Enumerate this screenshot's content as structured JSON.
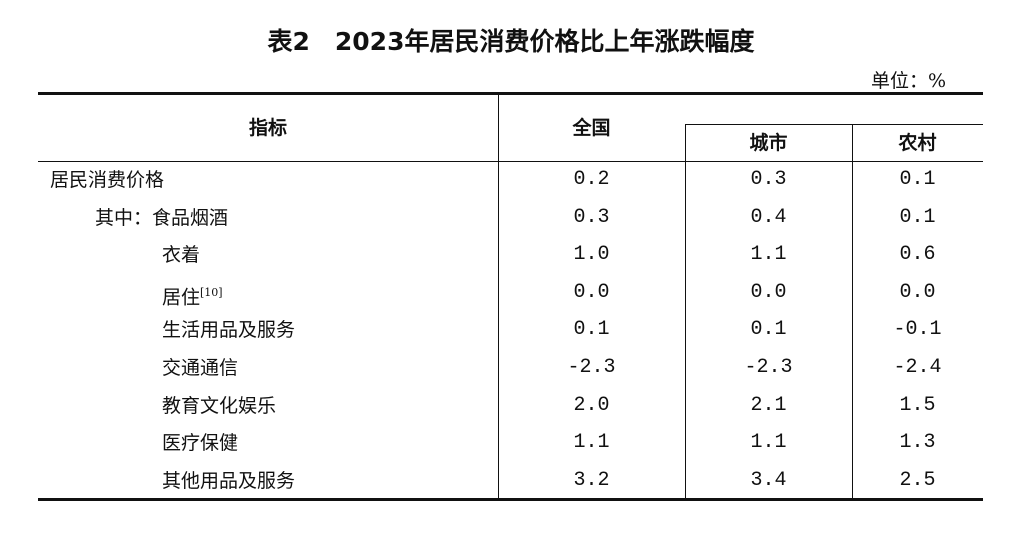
{
  "title": "表2　2023年居民消费价格比上年涨跌幅度",
  "unit": "单位：%",
  "headers": {
    "indicator": "指标",
    "national": "全国",
    "urban": "城市",
    "rural": "农村"
  },
  "rows": [
    {
      "label": "居民消费价格",
      "prefix": "",
      "sup": "",
      "national": "0.2",
      "urban": "0.3",
      "rural": "0.1"
    },
    {
      "label": "食品烟酒",
      "prefix": "其中：",
      "sup": "",
      "national": "0.3",
      "urban": "0.4",
      "rural": "0.1"
    },
    {
      "label": "衣着",
      "prefix": "",
      "sup": "",
      "national": "1.0",
      "urban": "1.1",
      "rural": "0.6"
    },
    {
      "label": "居住",
      "prefix": "",
      "sup": "[10]",
      "national": "0.0",
      "urban": "0.0",
      "rural": "0.0"
    },
    {
      "label": "生活用品及服务",
      "prefix": "",
      "sup": "",
      "national": "0.1",
      "urban": "0.1",
      "rural": "-0.1"
    },
    {
      "label": "交通通信",
      "prefix": "",
      "sup": "",
      "national": "-2.3",
      "urban": "-2.3",
      "rural": "-2.4"
    },
    {
      "label": "教育文化娱乐",
      "prefix": "",
      "sup": "",
      "national": "2.0",
      "urban": "2.1",
      "rural": "1.5"
    },
    {
      "label": "医疗保健",
      "prefix": "",
      "sup": "",
      "national": "1.1",
      "urban": "1.1",
      "rural": "1.3"
    },
    {
      "label": "其他用品及服务",
      "prefix": "",
      "sup": "",
      "national": "3.2",
      "urban": "3.4",
      "rural": "2.5"
    }
  ]
}
